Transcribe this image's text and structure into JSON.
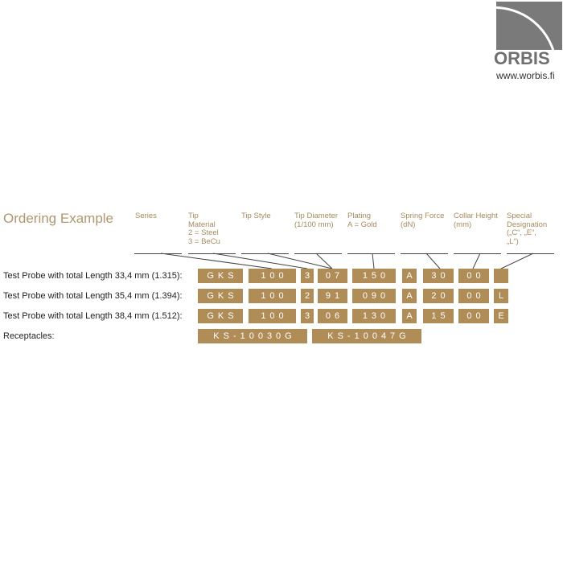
{
  "logo": {
    "brand": "ORBIS",
    "url": "www.worbis.fi"
  },
  "title": "Ordering Example",
  "headers": [
    "Series",
    "Tip\nMaterial\n2 = Steel\n3 = BeCu",
    "Tip Style",
    "Tip Diameter\n(1/100 mm)",
    "Plating\nA = Gold",
    "Spring Force\n(dN)",
    "Collar Height\n(mm)",
    "Special\nDesignation\n(„C“, „E“,\n„L“)"
  ],
  "rows": [
    {
      "label": "Test Probe with total Length 33,4 mm (1.315):",
      "cells": [
        "GKS",
        "100",
        "3",
        "07",
        "150",
        "A",
        "30",
        "00",
        ""
      ]
    },
    {
      "label": "Test Probe with total Length 35,4 mm (1.394):",
      "cells": [
        "GKS",
        "100",
        "2",
        "91",
        "090",
        "A",
        "20",
        "00",
        "L"
      ]
    },
    {
      "label": "Test Probe with total Length 38,4 mm (1.512):",
      "cells": [
        "GKS",
        "100",
        "3",
        "06",
        "130",
        "A",
        "15",
        "00",
        "E"
      ]
    }
  ],
  "receptacles": {
    "label": "Receptacles:",
    "items": [
      "KS-10030G",
      "KS-10047G"
    ]
  },
  "colors": {
    "box": "#b08d57",
    "header": "#a88a5c"
  }
}
